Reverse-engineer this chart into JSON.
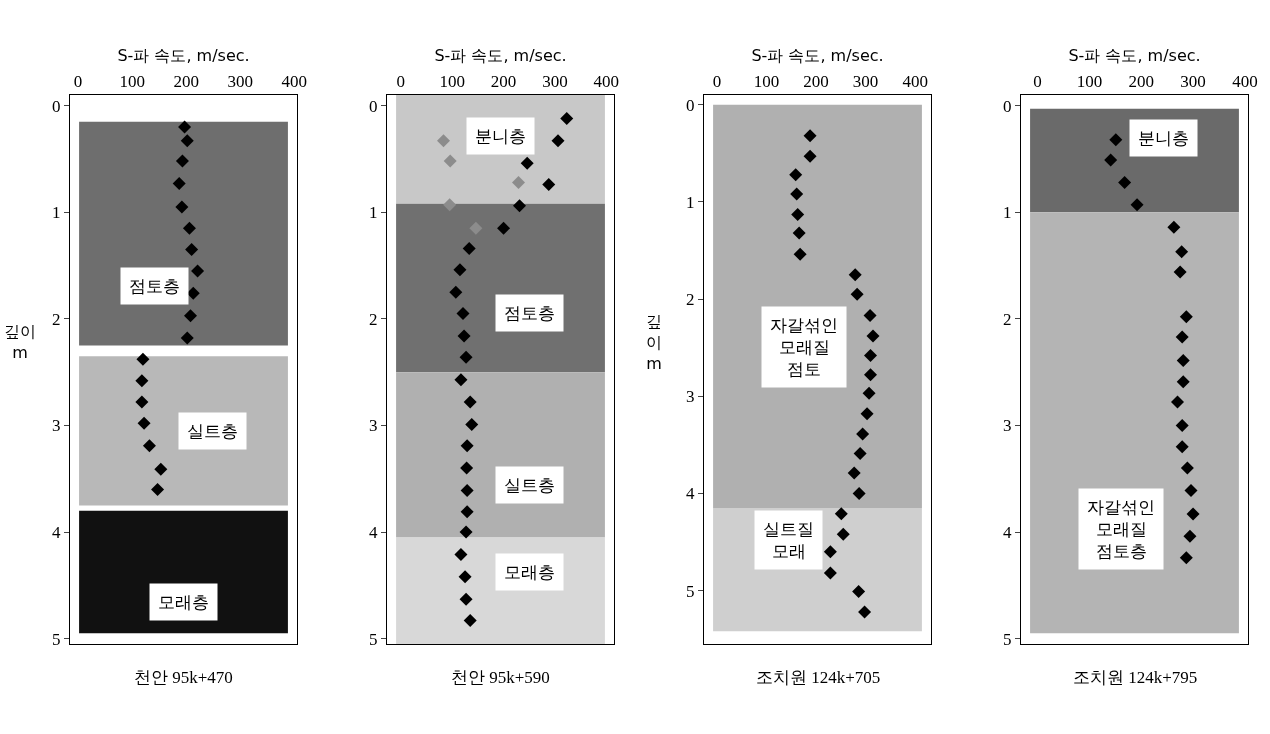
{
  "chart_data": [
    {
      "type": "scatter",
      "xlabel": "S-파 속도, m/sec.",
      "ylabel": "깊이\nm",
      "marker": "diamond",
      "xlim": [
        -15,
        405
      ],
      "xticks": [
        0,
        100,
        200,
        300,
        400
      ],
      "ylim": [
        5.05,
        -0.1
      ],
      "yticks": [
        0,
        1,
        2,
        3,
        4,
        5
      ],
      "series": [
        {
          "color": "#000000",
          "x": [
            197,
            202,
            193,
            187,
            192,
            206,
            210,
            221,
            213,
            208,
            202,
            120,
            118,
            118,
            122,
            132,
            153,
            147
          ],
          "values": [
            0.2,
            0.33,
            0.52,
            0.73,
            0.95,
            1.15,
            1.35,
            1.55,
            1.76,
            1.97,
            2.18,
            2.38,
            2.58,
            2.78,
            2.98,
            3.19,
            3.41,
            3.6
          ]
        }
      ],
      "bands": [
        {
          "axis": "y",
          "from": 0.15,
          "to": 2.25,
          "label": "점토층",
          "color": "#6e6e6e"
        },
        {
          "axis": "y",
          "from": 2.35,
          "to": 3.75,
          "label": "실트층",
          "color": "#b8b8b8"
        },
        {
          "axis": "y",
          "from": 3.8,
          "to": 4.95,
          "label": "모래층",
          "color": "#111111"
        }
      ],
      "annotations": [
        "천안 95k+470"
      ]
    },
    {
      "type": "scatter",
      "xlabel": "S-파 속도, m/sec.",
      "marker": "diamond",
      "xlim": [
        -27,
        415
      ],
      "xticks": [
        0,
        100,
        200,
        300,
        400
      ],
      "ylim": [
        5.05,
        -0.1
      ],
      "yticks": [
        0,
        1,
        2,
        3,
        4,
        5
      ],
      "series": [
        {
          "color": "#000000",
          "x": [
            323,
            306,
            246,
            288,
            231,
            200,
            133,
            115,
            107,
            121,
            123,
            127,
            117,
            135,
            138,
            129,
            128,
            129,
            129,
            127,
            117,
            125,
            127,
            135
          ],
          "values": [
            0.12,
            0.33,
            0.54,
            0.74,
            0.94,
            1.15,
            1.34,
            1.54,
            1.75,
            1.95,
            2.16,
            2.36,
            2.57,
            2.78,
            2.99,
            3.19,
            3.4,
            3.61,
            3.81,
            4.0,
            4.21,
            4.42,
            4.63,
            4.83
          ]
        },
        {
          "color": "#8c8c8c",
          "x": [
            83,
            96,
            229,
            95,
            146
          ],
          "values": [
            0.33,
            0.52,
            0.72,
            0.93,
            1.15
          ]
        }
      ],
      "bands": [
        {
          "axis": "y",
          "from": -0.1,
          "to": 0.92,
          "label": "분니층",
          "color": "#c8c8c8"
        },
        {
          "axis": "y",
          "from": 0.92,
          "to": 2.5,
          "label": "점토층",
          "color": "#707070"
        },
        {
          "axis": "y",
          "from": 2.5,
          "to": 4.05,
          "label": "실트층",
          "color": "#b0b0b0"
        },
        {
          "axis": "y",
          "from": 4.05,
          "to": 5.05,
          "label": "모래층",
          "color": "#d8d8d8"
        }
      ],
      "annotations": [
        "천안 95k+590"
      ]
    },
    {
      "type": "scatter",
      "xlabel": "S-파 속도, m/sec.",
      "ylabel": "깊\n이\nm",
      "marker": "diamond",
      "xlim": [
        -26,
        432
      ],
      "xticks": [
        0,
        100,
        200,
        300,
        400
      ],
      "ylim": [
        5.55,
        -0.1
      ],
      "yticks": [
        0,
        1,
        2,
        3,
        4,
        5
      ],
      "series": [
        {
          "color": "#000000",
          "x": [
            188,
            188,
            159,
            161,
            163,
            166,
            168,
            279,
            283,
            309,
            315,
            310,
            310,
            307,
            303,
            294,
            289,
            277,
            287,
            251,
            255,
            229,
            229,
            286,
            298
          ],
          "values": [
            0.32,
            0.53,
            0.72,
            0.92,
            1.13,
            1.32,
            1.54,
            1.75,
            1.95,
            2.17,
            2.38,
            2.58,
            2.78,
            2.97,
            3.18,
            3.39,
            3.59,
            3.79,
            4.0,
            4.21,
            4.42,
            4.6,
            4.82,
            5.01,
            5.22
          ]
        }
      ],
      "bands": [
        {
          "axis": "y",
          "from": 0,
          "to": 4.15,
          "label": "자갈섞인\n모래질\n점토",
          "color": "#b0b0b0"
        },
        {
          "axis": "y",
          "from": 4.15,
          "to": 5.42,
          "label": "실트질\n모래",
          "color": "#cfcfcf"
        }
      ],
      "annotations": [
        "조치원 124k+705"
      ]
    },
    {
      "type": "scatter",
      "xlabel": "S-파 속도, m/sec.",
      "marker": "diamond",
      "xlim": [
        -32,
        406
      ],
      "xticks": [
        0,
        100,
        200,
        300,
        400
      ],
      "ylim": [
        5.05,
        -0.1
      ],
      "yticks": [
        0,
        1,
        2,
        3,
        4,
        5
      ],
      "series": [
        {
          "color": "#000000",
          "x": [
            151,
            141,
            168,
            192,
            263,
            278,
            275,
            287,
            279,
            281,
            281,
            270,
            279,
            279,
            289,
            296,
            300,
            294,
            287
          ],
          "values": [
            0.32,
            0.51,
            0.72,
            0.93,
            1.14,
            1.37,
            1.56,
            1.98,
            2.17,
            2.39,
            2.59,
            2.78,
            3.0,
            3.2,
            3.4,
            3.61,
            3.83,
            4.04,
            4.24
          ]
        }
      ],
      "bands": [
        {
          "axis": "y",
          "from": 0.03,
          "to": 1.0,
          "label": "분니층",
          "color": "#6a6a6a"
        },
        {
          "axis": "y",
          "from": 1.0,
          "to": 4.95,
          "label": "자갈섞인\n모래질\n점토층",
          "color": "#b4b4b4"
        }
      ],
      "annotations": [
        "조치원 124k+795"
      ]
    }
  ]
}
